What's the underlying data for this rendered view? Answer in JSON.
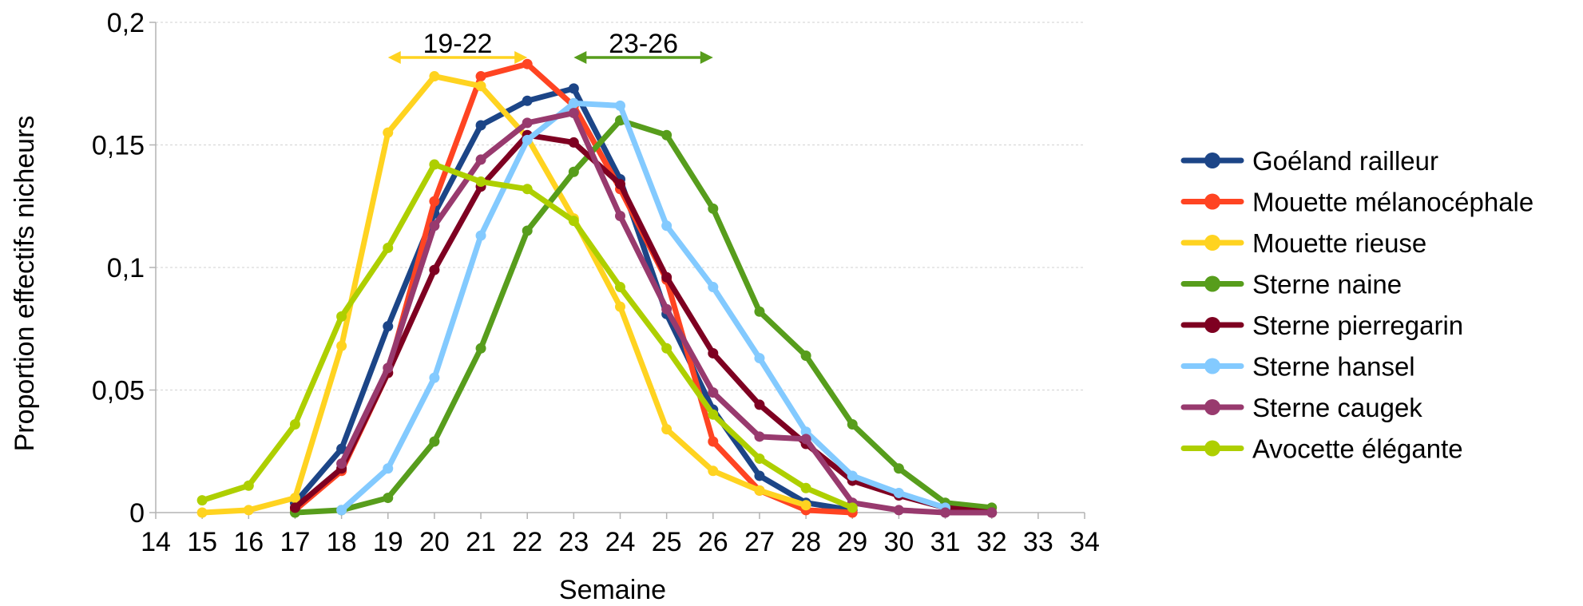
{
  "chart_data": {
    "type": "line",
    "title": "",
    "xlabel": "Semaine",
    "ylabel": "Proportion effectifs nicheurs",
    "xlim": [
      14,
      34
    ],
    "ylim": [
      0,
      0.2
    ],
    "x_ticks": [
      14,
      15,
      16,
      17,
      18,
      19,
      20,
      21,
      22,
      23,
      24,
      25,
      26,
      27,
      28,
      29,
      30,
      31,
      32,
      33,
      34
    ],
    "x_tick_labels": [
      "14",
      "15",
      "16",
      "17",
      "18",
      "19",
      "20",
      "21",
      "22",
      "23",
      "24",
      "25",
      "26",
      "27",
      "28",
      "29",
      "30",
      "31",
      "32",
      "33",
      "34"
    ],
    "y_ticks": [
      0,
      0.05,
      0.1,
      0.15,
      0.2
    ],
    "y_tick_labels": [
      "0",
      "0,05",
      "0,1",
      "0,15",
      "0,2"
    ],
    "grid": true,
    "legend_position": "right",
    "series": [
      {
        "name": "Goéland railleur",
        "color": "#1c4587",
        "x": [
          17,
          18,
          19,
          20,
          21,
          22,
          23,
          24,
          25,
          26,
          27,
          28,
          29
        ],
        "y": [
          0.004,
          0.026,
          0.076,
          0.122,
          0.158,
          0.168,
          0.173,
          0.136,
          0.081,
          0.042,
          0.015,
          0.004,
          0.001
        ]
      },
      {
        "name": "Mouette mélanocéphale",
        "color": "#ff4422",
        "x": [
          17,
          18,
          19,
          20,
          21,
          22,
          23,
          24,
          25,
          26,
          27,
          28,
          29
        ],
        "y": [
          0.001,
          0.017,
          0.057,
          0.127,
          0.178,
          0.183,
          0.166,
          0.132,
          0.095,
          0.029,
          0.009,
          0.001,
          0.0
        ]
      },
      {
        "name": "Mouette rieuse",
        "color": "#ffd320",
        "x": [
          15,
          16,
          17,
          18,
          19,
          20,
          21,
          22,
          23,
          24,
          25,
          26,
          27,
          28
        ],
        "y": [
          0.0,
          0.001,
          0.006,
          0.068,
          0.155,
          0.178,
          0.174,
          0.153,
          0.12,
          0.084,
          0.034,
          0.017,
          0.009,
          0.003
        ]
      },
      {
        "name": "Sterne naine",
        "color": "#579d1c",
        "x": [
          17,
          18,
          19,
          20,
          21,
          22,
          23,
          24,
          25,
          26,
          27,
          28,
          29,
          30,
          31,
          32
        ],
        "y": [
          0.0,
          0.001,
          0.006,
          0.029,
          0.067,
          0.115,
          0.139,
          0.16,
          0.154,
          0.124,
          0.082,
          0.064,
          0.036,
          0.018,
          0.004,
          0.002
        ]
      },
      {
        "name": "Sterne pierregarin",
        "color": "#7e0021",
        "x": [
          17,
          18,
          19,
          20,
          21,
          22,
          23,
          24,
          25,
          26,
          27,
          28,
          29,
          30,
          31,
          32
        ],
        "y": [
          0.002,
          0.018,
          0.057,
          0.099,
          0.133,
          0.154,
          0.151,
          0.134,
          0.096,
          0.065,
          0.044,
          0.028,
          0.013,
          0.007,
          0.002,
          0.0
        ]
      },
      {
        "name": "Sterne hansel",
        "color": "#83caff",
        "x": [
          18,
          19,
          20,
          21,
          22,
          23,
          24,
          25,
          26,
          27,
          28,
          29,
          30,
          31
        ],
        "y": [
          0.001,
          0.018,
          0.055,
          0.113,
          0.152,
          0.167,
          0.166,
          0.117,
          0.092,
          0.063,
          0.033,
          0.015,
          0.008,
          0.002
        ]
      },
      {
        "name": "Sterne caugek",
        "color": "#983a6e",
        "x": [
          18,
          19,
          20,
          21,
          22,
          23,
          24,
          25,
          26,
          27,
          28,
          29,
          30,
          31,
          32
        ],
        "y": [
          0.02,
          0.059,
          0.117,
          0.144,
          0.159,
          0.163,
          0.121,
          0.083,
          0.049,
          0.031,
          0.03,
          0.004,
          0.001,
          0.0,
          0.0
        ]
      },
      {
        "name": "Avocette élégante",
        "color": "#aecf00",
        "x": [
          15,
          16,
          17,
          18,
          19,
          20,
          21,
          22,
          23,
          24,
          25,
          26,
          27,
          28,
          29
        ],
        "y": [
          0.005,
          0.011,
          0.036,
          0.08,
          0.108,
          0.142,
          0.135,
          0.132,
          0.119,
          0.092,
          0.067,
          0.04,
          0.022,
          0.01,
          0.002
        ]
      }
    ],
    "annotations": [
      {
        "text": "19-22",
        "x_from": 19,
        "x_to": 22,
        "color": "#ffd320"
      },
      {
        "text": "23-26",
        "x_from": 23,
        "x_to": 26,
        "color": "#579d1c"
      }
    ]
  }
}
